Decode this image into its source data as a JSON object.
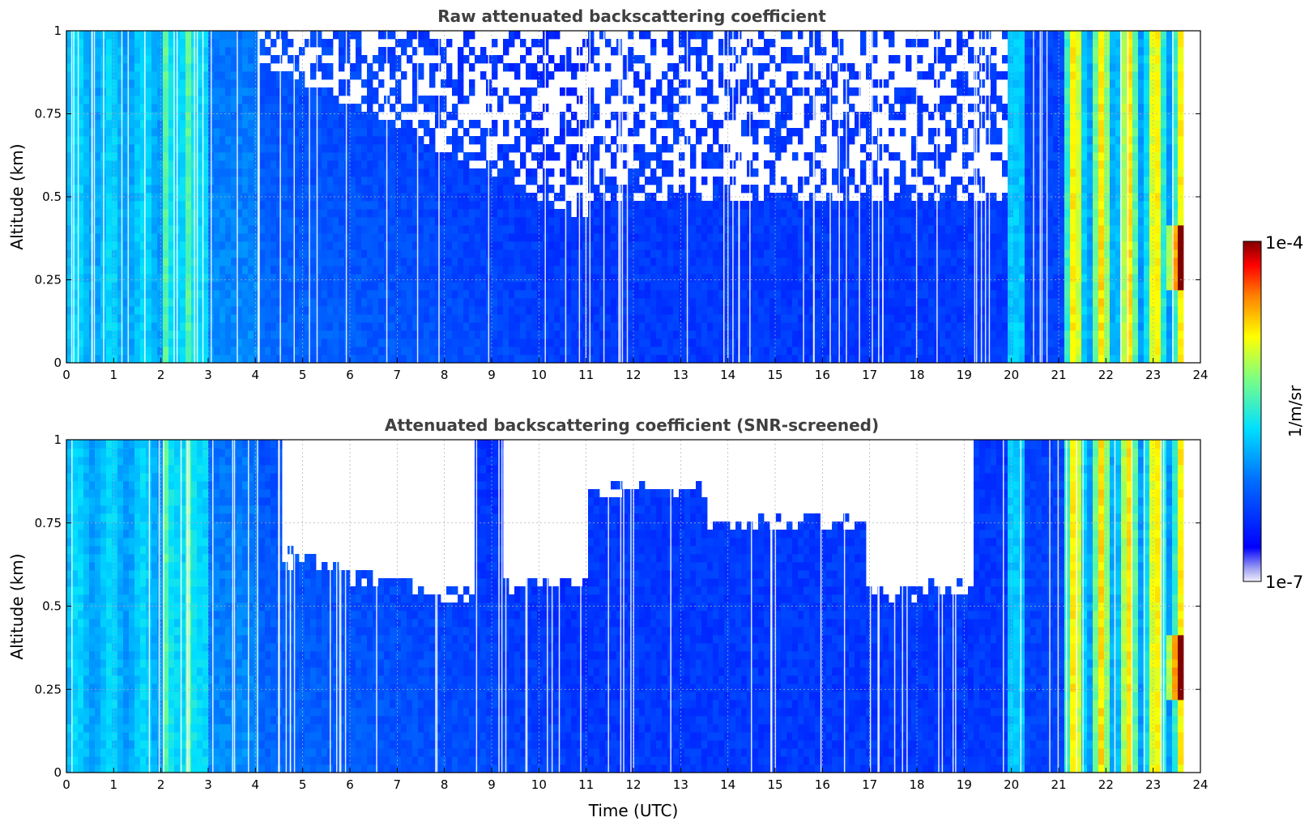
{
  "chart_data": [
    {
      "type": "heatmap",
      "title": "Raw attenuated backscattering coefficient",
      "xlabel": "",
      "ylabel": "Altitude (km)",
      "xlim": [
        0,
        24
      ],
      "ylim": [
        0,
        1
      ],
      "xticks": [
        "0",
        "1",
        "2",
        "3",
        "4",
        "5",
        "6",
        "7",
        "8",
        "9",
        "10",
        "11",
        "12",
        "13",
        "14",
        "15",
        "16",
        "17",
        "18",
        "19",
        "20",
        "21",
        "22",
        "23",
        "24"
      ],
      "yticks": [
        "0",
        "0.25",
        "0.5",
        "0.75",
        "1"
      ],
      "grid": true,
      "screened": false
    },
    {
      "type": "heatmap",
      "title": "Attenuated backscattering coefficient (SNR-screened)",
      "xlabel": "Time (UTC)",
      "ylabel": "Altitude (km)",
      "xlim": [
        0,
        24
      ],
      "ylim": [
        0,
        1
      ],
      "xticks": [
        "0",
        "1",
        "2",
        "3",
        "4",
        "5",
        "6",
        "7",
        "8",
        "9",
        "10",
        "11",
        "12",
        "13",
        "14",
        "15",
        "16",
        "17",
        "18",
        "19",
        "20",
        "21",
        "22",
        "23",
        "24"
      ],
      "yticks": [
        "0",
        "0.25",
        "0.5",
        "0.75",
        "1"
      ],
      "grid": true,
      "screened": true
    }
  ],
  "colorbar": {
    "label": "1/m/sr",
    "max_label": "1e-4",
    "min_label": "1e-7",
    "scale": "log",
    "range": [
      1e-07,
      0.0001
    ],
    "placement": "right"
  }
}
